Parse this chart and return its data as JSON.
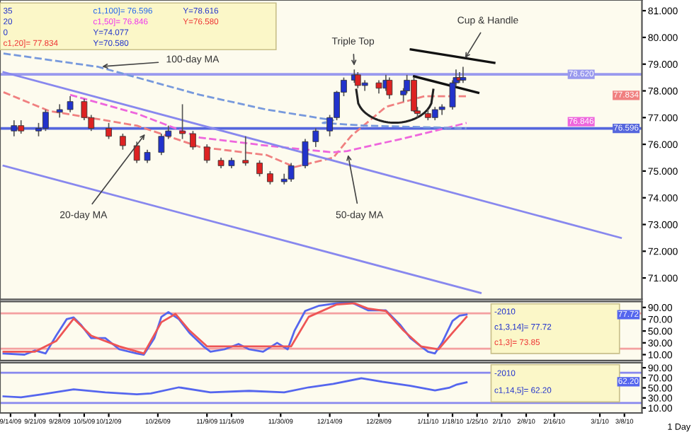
{
  "chart_data": [
    {
      "type": "candlestick",
      "xlim": [
        "2009-09-11",
        "2010-03-13"
      ],
      "ylim": [
        70.2,
        81.4
      ],
      "tick_labels": "y",
      "grid": false,
      "yticks": [
        {
          "value": 71,
          "label": "71.000"
        },
        {
          "value": 72,
          "label": "72.000"
        },
        {
          "value": 73,
          "label": "73.000"
        },
        {
          "value": 74,
          "label": "74.000"
        },
        {
          "value": 75,
          "label": "75.000"
        },
        {
          "value": 76,
          "label": "76.000"
        },
        {
          "value": 77,
          "label": "77.000"
        },
        {
          "value": 78,
          "label": "78.000"
        },
        {
          "value": 79,
          "label": "79.000"
        },
        {
          "value": 80,
          "label": "80.000"
        },
        {
          "value": 81,
          "label": "81.000"
        }
      ],
      "x": [
        "2009-09-15",
        "2009-09-17",
        "2009-09-22",
        "2009-09-24",
        "2009-09-28",
        "2009-10-01",
        "2009-10-05",
        "2009-10-07",
        "2009-10-12",
        "2009-10-16",
        "2009-10-20",
        "2009-10-23",
        "2009-10-27",
        "2009-10-29",
        "2009-11-02",
        "2009-11-05",
        "2009-11-09",
        "2009-11-13",
        "2009-11-16",
        "2009-11-20",
        "2009-11-24",
        "2009-11-27",
        "2009-12-01",
        "2009-12-03",
        "2009-12-07",
        "2009-12-10",
        "2009-12-14",
        "2009-12-16",
        "2009-12-18",
        "2009-12-21",
        "2009-12-22",
        "2009-12-24",
        "2009-12-28",
        "2009-12-30",
        "2009-12-31",
        "2010-01-04",
        "2010-01-05",
        "2010-01-07",
        "2010-01-08",
        "2010-01-11",
        "2010-01-13",
        "2010-01-15",
        "2010-01-18",
        "2010-01-19",
        "2010-01-20",
        "2010-01-21"
      ],
      "ohlc": [
        [
          76.5,
          76.9,
          76.3,
          76.7
        ],
        [
          76.7,
          76.9,
          76.4,
          76.5
        ],
        [
          76.5,
          76.8,
          76.3,
          76.6
        ],
        [
          76.6,
          77.3,
          76.5,
          77.2
        ],
        [
          77.2,
          77.5,
          77.0,
          77.3
        ],
        [
          77.3,
          77.8,
          77.2,
          77.6
        ],
        [
          77.6,
          77.7,
          76.9,
          77.0
        ],
        [
          77.0,
          77.1,
          76.5,
          76.6
        ],
        [
          76.6,
          76.8,
          76.2,
          76.3
        ],
        [
          76.3,
          76.4,
          75.8,
          75.95
        ],
        [
          75.95,
          76.1,
          75.3,
          75.4
        ],
        [
          75.4,
          75.8,
          75.3,
          75.7
        ],
        [
          75.7,
          76.4,
          75.6,
          76.3
        ],
        [
          76.3,
          76.7,
          76.2,
          76.5
        ],
        [
          76.5,
          77.5,
          76.2,
          76.4
        ],
        [
          76.4,
          76.5,
          75.8,
          75.9
        ],
        [
          75.9,
          76.0,
          75.3,
          75.4
        ],
        [
          75.4,
          75.5,
          75.1,
          75.2
        ],
        [
          75.2,
          75.5,
          75.1,
          75.4
        ],
        [
          75.4,
          76.3,
          75.2,
          75.3
        ],
        [
          75.3,
          75.4,
          74.8,
          74.9
        ],
        [
          74.9,
          75.0,
          74.5,
          74.6
        ],
        [
          74.6,
          74.9,
          74.5,
          74.7
        ],
        [
          74.7,
          75.3,
          74.6,
          75.2
        ],
        [
          75.2,
          76.2,
          75.1,
          76.1
        ],
        [
          76.1,
          76.6,
          75.9,
          76.5
        ],
        [
          76.5,
          77.1,
          76.3,
          77.0
        ],
        [
          77.0,
          78.0,
          76.9,
          77.95
        ],
        [
          77.95,
          78.5,
          77.8,
          78.4
        ],
        [
          78.4,
          78.8,
          78.3,
          78.6
        ],
        [
          78.6,
          78.7,
          78.1,
          78.2
        ],
        [
          78.2,
          78.4,
          78.0,
          78.3
        ],
        [
          78.3,
          78.4,
          77.9,
          78.1
        ],
        [
          78.1,
          78.6,
          78.0,
          78.4
        ],
        [
          78.4,
          78.5,
          77.7,
          77.85
        ],
        [
          77.85,
          78.1,
          77.6,
          78.0
        ],
        [
          78.0,
          78.6,
          77.9,
          78.4
        ],
        [
          78.4,
          78.5,
          77.2,
          77.25
        ],
        [
          77.25,
          77.4,
          77.0,
          77.15
        ],
        [
          77.15,
          77.3,
          76.9,
          77.0
        ],
        [
          77.0,
          77.4,
          76.9,
          77.3
        ],
        [
          77.3,
          77.5,
          77.1,
          77.4
        ],
        [
          77.4,
          78.4,
          77.3,
          78.3
        ],
        [
          78.3,
          78.8,
          78.2,
          78.5
        ],
        [
          78.5,
          78.7,
          78.3,
          78.4
        ],
        [
          78.4,
          78.9,
          78.3,
          78.5
        ]
      ],
      "colors": [
        "#2233cc",
        "#dd2222",
        "#2233cc",
        "#2233cc",
        "#2233cc",
        "#2233cc",
        "#dd2222",
        "#dd2222",
        "#dd2222",
        "#dd2222",
        "#dd2222",
        "#2233cc",
        "#2233cc",
        "#2233cc",
        "#dd2222",
        "#dd2222",
        "#dd2222",
        "#dd2222",
        "#2233cc",
        "#dd2222",
        "#dd2222",
        "#dd2222",
        "#2233cc",
        "#2233cc",
        "#2233cc",
        "#2233cc",
        "#2233cc",
        "#2233cc",
        "#2233cc",
        "#2233cc",
        "#dd2222",
        "#2233cc",
        "#dd2222",
        "#2233cc",
        "#dd2222",
        "#2233cc",
        "#2233cc",
        "#dd2222",
        "#dd2222",
        "#dd2222",
        "#2233cc",
        "#2233cc",
        "#2233cc",
        "#2233cc",
        "#dd2222",
        "#2233cc"
      ],
      "series": [
        {
          "type": "line",
          "line_style": "dashed",
          "color": "#f08080",
          "x": [
            "2009-09-12",
            "2009-09-25",
            "2009-10-20",
            "2009-11-07",
            "2009-11-26",
            "2009-12-04",
            "2009-12-15",
            "2009-12-20",
            "2009-12-30",
            "2010-01-10",
            "2010-01-22"
          ],
          "values": [
            77.95,
            77.25,
            76.7,
            75.9,
            75.6,
            75.15,
            75.5,
            76.3,
            77.4,
            77.8,
            77.8
          ]
        },
        {
          "type": "line",
          "line_style": "dashed",
          "color": "#ee66dd",
          "x": [
            "2009-10-01",
            "2009-10-20",
            "2009-11-07",
            "2009-11-26",
            "2009-12-15",
            "2009-12-19",
            "2010-01-05",
            "2010-01-22"
          ],
          "values": [
            77.85,
            77.15,
            76.25,
            75.95,
            75.7,
            75.75,
            76.25,
            76.8
          ]
        },
        {
          "type": "line",
          "line_style": "dashed",
          "color": "#7799dd",
          "x": [
            "2009-09-12",
            "2009-10-09",
            "2009-11-07",
            "2009-11-26",
            "2009-12-15",
            "2009-12-12",
            "2009-12-24",
            "2010-01-22"
          ],
          "values": [
            79.4,
            78.9,
            77.85,
            77.3,
            76.9,
            76.8,
            76.7,
            76.6
          ]
        },
        {
          "type": "line",
          "line_style": "solid",
          "color": "#8888ee",
          "x": [
            "2009-09-12",
            "2010-03-07"
          ],
          "values": [
            78.7,
            72.5
          ]
        },
        {
          "type": "line",
          "line_style": "solid",
          "color": "#8888ee",
          "x": [
            "2009-09-12",
            "2010-01-26"
          ],
          "values": [
            75.2,
            70.44
          ]
        }
      ],
      "ref_lines": [
        {
          "axis": "y",
          "value": 78.62,
          "label": "78.620",
          "color": "#9999ee"
        },
        {
          "axis": "y",
          "value": 76.596,
          "label": "76.596",
          "color": "#5566dd"
        }
      ],
      "annotations": [
        {
          "text": "100-day MA",
          "x": "2009-10-09",
          "y": 78.9
        },
        {
          "text": "20-day MA",
          "x": "2009-10-23",
          "y": 76.5
        },
        {
          "text": "50-day MA",
          "x": "2009-12-19",
          "y": 75.75
        },
        {
          "text": "Triple Top",
          "x": "2009-12-21",
          "y": 78.8
        },
        {
          "text": "Cup & Handle",
          "x": "2010-01-21",
          "y": 79.1
        },
        "35",
        "20",
        "0",
        "c1,20]= 77.834",
        "c1,100]= 76.596",
        "c1,50]= 76.846",
        "Y=74.077",
        "Y=70.580",
        "Y=78.616",
        "Y=76.580",
        {
          "text": "77.834",
          "y": 77.834
        },
        {
          "text": "76.846",
          "y": 76.846
        }
      ]
    },
    {
      "type": "line",
      "xlim": [
        "2009-09-11",
        "2010-03-13"
      ],
      "ylim": [
        0,
        100
      ],
      "tick_labels": "y",
      "grid": false,
      "yticks": [
        {
          "value": 10,
          "label": "10.00"
        },
        {
          "value": 30,
          "label": "30.00"
        },
        {
          "value": 50,
          "label": "50.00"
        },
        {
          "value": 70,
          "label": "70.00"
        },
        {
          "value": 90,
          "label": "90.00"
        }
      ],
      "series": [
        {
          "color": "#5566ee",
          "x": [
            "2009-09-12",
            "2009-09-18",
            "2009-09-21",
            "2009-09-24",
            "2009-09-27",
            "2009-09-30",
            "2009-10-02",
            "2009-10-04",
            "2009-10-07",
            "2009-10-11",
            "2009-10-15",
            "2009-10-20",
            "2009-10-22",
            "2009-10-25",
            "2009-10-27",
            "2009-10-29",
            "2009-11-01",
            "2009-11-04",
            "2009-11-08",
            "2009-11-10",
            "2009-11-14",
            "2009-11-18",
            "2009-11-21",
            "2009-11-25",
            "2009-11-29",
            "2009-12-02",
            "2009-12-04",
            "2009-12-07",
            "2009-12-11",
            "2009-12-16",
            "2009-12-20",
            "2009-12-25",
            "2009-12-30",
            "2010-01-03",
            "2010-01-06",
            "2010-01-09",
            "2010-01-11",
            "2010-01-13",
            "2010-01-15",
            "2010-01-18",
            "2010-01-20",
            "2010-01-22"
          ],
          "values": [
            12,
            10,
            17,
            12,
            42,
            70,
            73,
            61,
            38,
            38,
            19,
            12,
            10,
            38,
            74,
            82,
            70,
            47,
            24,
            15,
            19,
            28,
            19,
            15,
            30,
            19,
            51,
            84,
            93,
            97,
            99,
            85,
            85,
            61,
            38,
            24,
            15,
            12,
            30,
            67,
            76,
            78
          ]
        },
        {
          "color": "#ee5555",
          "x": [
            "2009-09-12",
            "2009-09-21",
            "2009-09-27",
            "2009-10-02",
            "2009-10-07",
            "2009-10-15",
            "2009-10-22",
            "2009-10-27",
            "2009-10-31",
            "2009-11-04",
            "2009-11-09",
            "2009-11-18",
            "2009-11-29",
            "2009-12-03",
            "2009-12-08",
            "2009-12-16",
            "2009-12-21",
            "2009-12-25",
            "2009-12-30",
            "2010-01-04",
            "2010-01-09",
            "2010-01-14",
            "2010-01-18",
            "2010-01-22"
          ],
          "values": [
            15,
            15,
            33,
            71,
            42,
            24,
            12,
            65,
            79,
            51,
            24,
            24,
            24,
            24,
            74,
            95,
            97,
            88,
            84,
            51,
            24,
            19,
            47,
            74
          ]
        }
      ],
      "ref_lines": [
        {
          "axis": "y",
          "value": 80,
          "color": "#f4a0a0"
        },
        {
          "axis": "y",
          "value": 20,
          "color": "#f4a0a0"
        }
      ],
      "annotations": [
        "-2010",
        "c1,3,14]= 77.72",
        "c1,3]= 73.85",
        {
          "text": "77.72",
          "y": 77.72
        }
      ]
    },
    {
      "type": "line",
      "xlim": [
        "2009-09-11",
        "2010-03-13"
      ],
      "ylim": [
        0,
        100
      ],
      "grid": false,
      "yticks": [
        {
          "value": 10,
          "label": "10.00"
        },
        {
          "value": 30,
          "label": "30.00"
        },
        {
          "value": 50,
          "label": "50.00"
        },
        {
          "value": 70,
          "label": "70.00"
        },
        {
          "value": 90,
          "label": "90.00"
        }
      ],
      "xticks": [
        {
          "value": "2009-09-14",
          "label": "9/14/09"
        },
        {
          "value": "2009-09-21",
          "label": "9/21/09"
        },
        {
          "value": "2009-09-28",
          "label": "9/28/09"
        },
        {
          "value": "2009-10-05",
          "label": "10/5/09"
        },
        {
          "value": "2009-10-12",
          "label": "10/12/09"
        },
        {
          "value": "2009-10-26",
          "label": "10/26/09"
        },
        {
          "value": "2009-11-09",
          "label": "11/9/09"
        },
        {
          "value": "2009-11-16",
          "label": "11/16/09"
        },
        {
          "value": "2009-11-30",
          "label": "11/30/09"
        },
        {
          "value": "2009-12-14",
          "label": "12/14/09"
        },
        {
          "value": "2009-12-28",
          "label": "12/28/09"
        },
        {
          "value": "2010-01-11",
          "label": "1/11/10"
        },
        {
          "value": "2010-01-18",
          "label": "1/18/10"
        },
        {
          "value": "2010-01-25",
          "label": "1/25/10"
        },
        {
          "value": "2010-02-01",
          "label": "2/1/10"
        },
        {
          "value": "2010-02-08",
          "label": "2/8/10"
        },
        {
          "value": "2010-02-16",
          "label": "2/16/10"
        },
        {
          "value": "2010-03-01",
          "label": "3/1/10"
        },
        {
          "value": "2010-03-08",
          "label": "3/8/10"
        }
      ],
      "series": [
        {
          "color": "#5566ee",
          "x": [
            "2009-09-12",
            "2009-09-17",
            "2009-09-23",
            "2009-10-02",
            "2009-10-11",
            "2009-10-20",
            "2009-10-24",
            "2009-11-01",
            "2009-11-10",
            "2009-11-21",
            "2009-12-01",
            "2009-12-08",
            "2009-12-15",
            "2009-12-23",
            "2009-12-29",
            "2010-01-06",
            "2010-01-13",
            "2010-01-17",
            "2010-01-19",
            "2010-01-22"
          ],
          "values": [
            33,
            31,
            37,
            47,
            41,
            37,
            39,
            51,
            41,
            44,
            41,
            51,
            58,
            69,
            62,
            54,
            45,
            50,
            56,
            61
          ]
        }
      ],
      "ref_lines": [
        {
          "axis": "y",
          "value": 80,
          "color": "#8888ee"
        },
        {
          "axis": "y",
          "value": 20,
          "color": "#8888ee"
        }
      ],
      "annotations": [
        "-2010",
        "c1,14,5]= 62.20",
        {
          "text": "62.20",
          "y": 62.2
        },
        "1 Day"
      ]
    }
  ]
}
